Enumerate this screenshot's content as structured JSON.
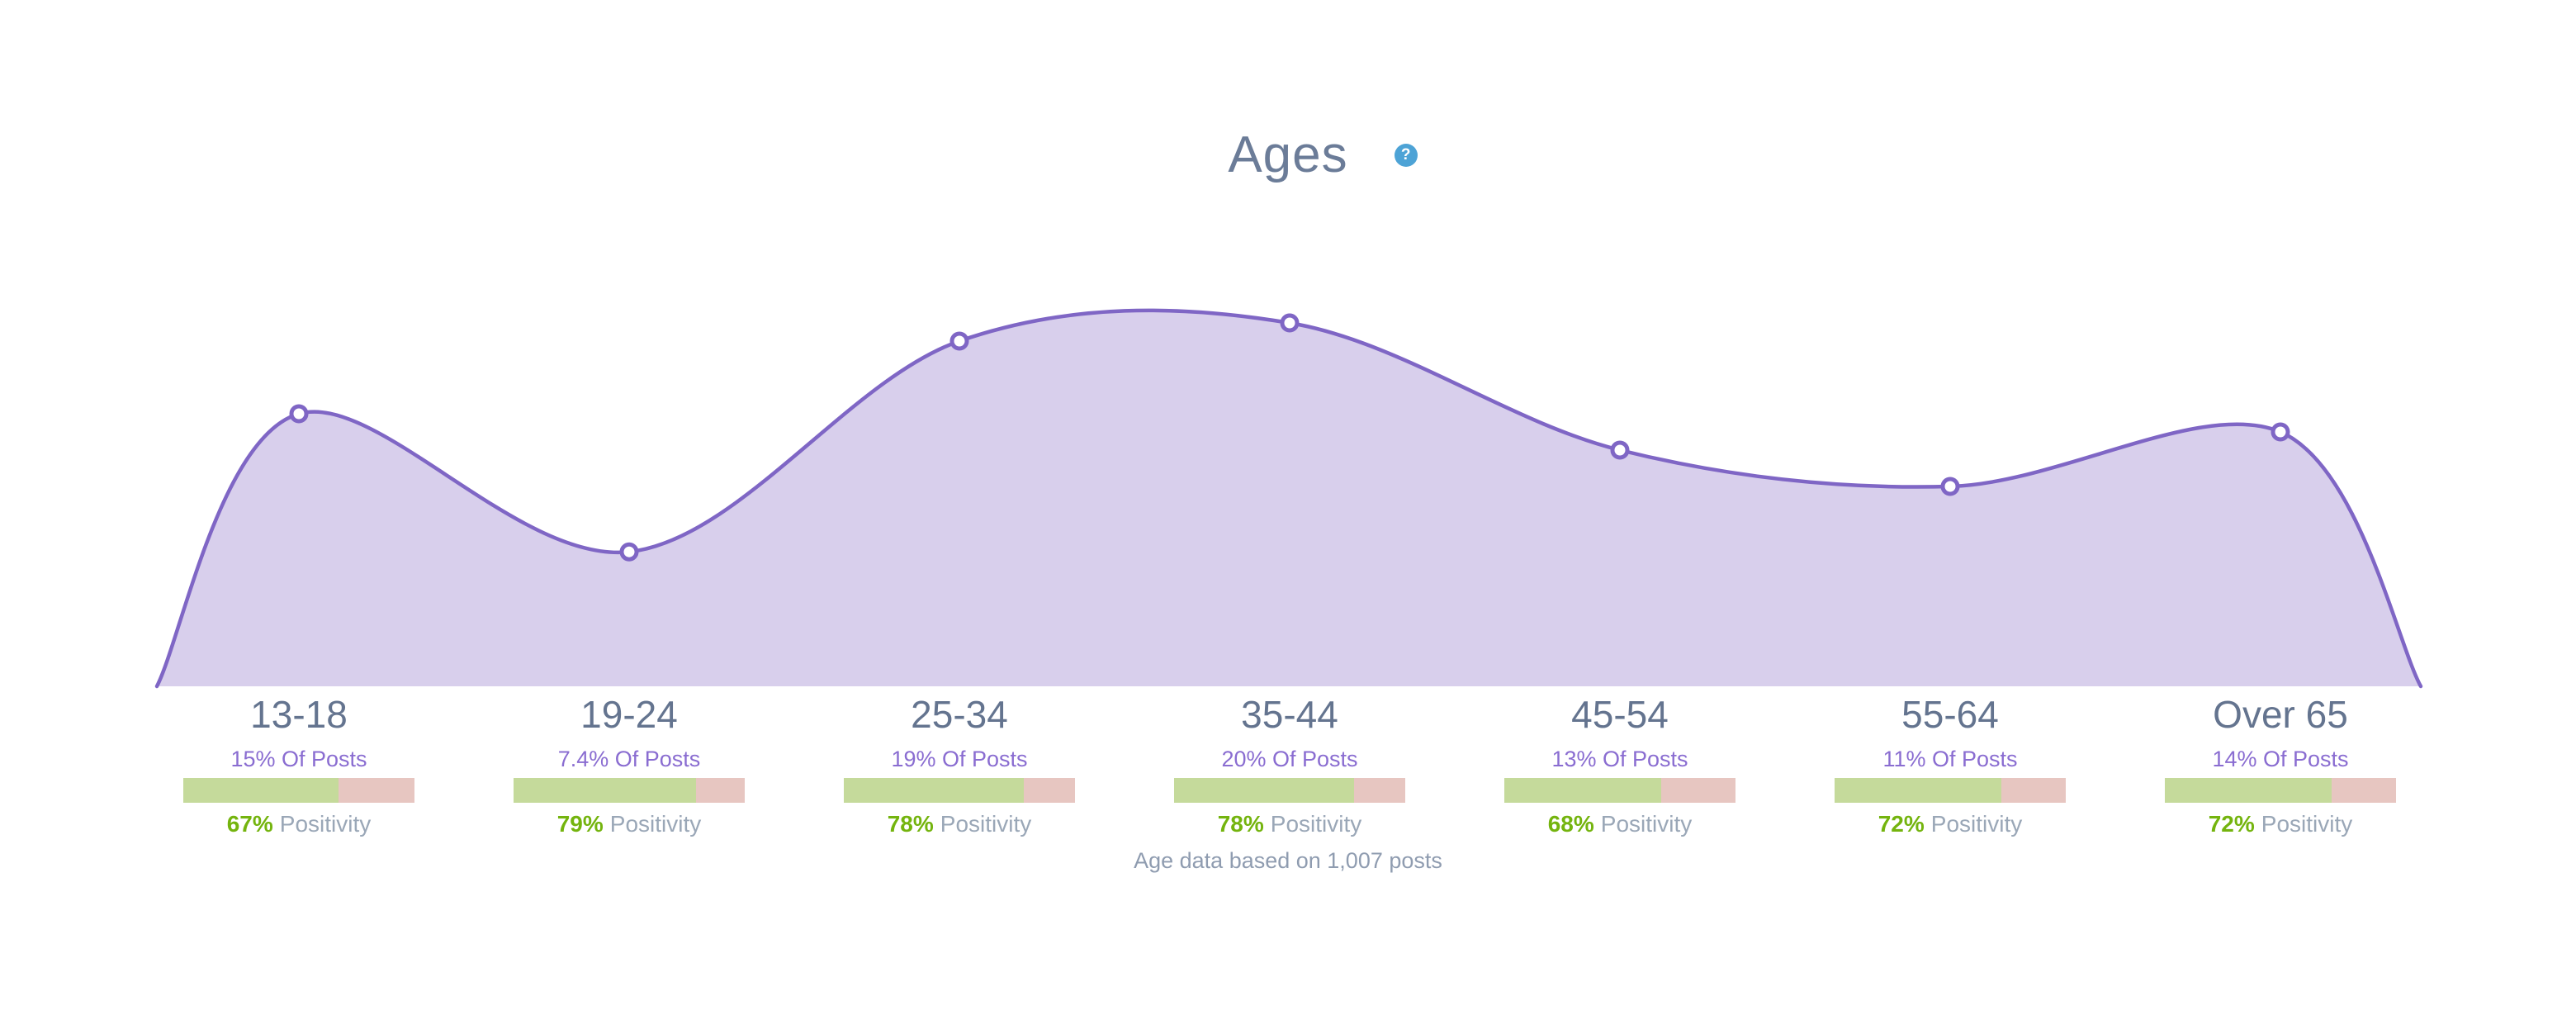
{
  "header": {
    "title": "Ages",
    "help_icon_glyph": "?"
  },
  "chart_data": {
    "type": "area",
    "title": "Ages",
    "categories": [
      "13-18",
      "19-24",
      "25-34",
      "35-44",
      "45-54",
      "55-64",
      "Over 65"
    ],
    "series": [
      {
        "name": "% Of Posts",
        "values": [
          15,
          7.4,
          19,
          20,
          13,
          11,
          14
        ]
      },
      {
        "name": "Positivity %",
        "values": [
          67,
          79,
          78,
          78,
          68,
          72,
          72
        ]
      }
    ],
    "ylim": [
      0,
      20
    ],
    "grid": false,
    "legend": "none",
    "colors": {
      "line": "#7f66c5",
      "fill": "#d8cfec",
      "marker_fill": "#ffffff",
      "positive_bar": "#c5da9b",
      "negative_bar": "#e7c6c1",
      "positive_text": "#74b40e",
      "accent_purple_text": "#8a6dd1",
      "help_icon_bg": "#4da3d6"
    }
  },
  "ages": [
    {
      "label": "13-18",
      "posts_text": "15% Of Posts",
      "positivity_value": "67%",
      "positivity_label": "Positivity"
    },
    {
      "label": "19-24",
      "posts_text": "7.4% Of Posts",
      "positivity_value": "79%",
      "positivity_label": "Positivity"
    },
    {
      "label": "25-34",
      "posts_text": "19% Of Posts",
      "positivity_value": "78%",
      "positivity_label": "Positivity"
    },
    {
      "label": "35-44",
      "posts_text": "20% Of Posts",
      "positivity_value": "78%",
      "positivity_label": "Positivity"
    },
    {
      "label": "45-54",
      "posts_text": "13% Of Posts",
      "positivity_value": "68%",
      "positivity_label": "Positivity"
    },
    {
      "label": "55-64",
      "posts_text": "11% Of Posts",
      "positivity_value": "72%",
      "positivity_label": "Positivity"
    },
    {
      "label": "Over 65",
      "posts_text": "14% Of Posts",
      "positivity_value": "72%",
      "positivity_label": "Positivity"
    }
  ],
  "footer": {
    "note": "Age data based on 1,007 posts"
  }
}
